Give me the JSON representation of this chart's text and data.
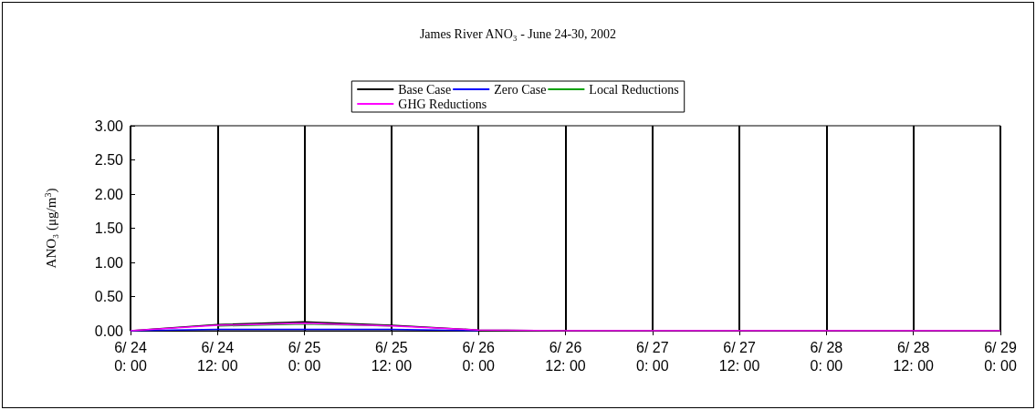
{
  "chart_data": {
    "type": "line",
    "title": "James River ANO₃ - June 24-30, 2002",
    "ylabel": "ANO₃ (μg/m$^{3}$)",
    "categories": [
      "6/ 24\n0: 00",
      "6/ 24\n12: 00",
      "6/ 25\n0: 00",
      "6/ 25\n12: 00",
      "6/ 26\n0: 00",
      "6/ 26\n12: 00",
      "6/ 27\n0: 00",
      "6/ 27\n12: 00",
      "6/ 28\n0: 00",
      "6/ 28\n12: 00",
      "6/ 29\n0: 00"
    ],
    "series": [
      {
        "name": "Base Case",
        "color": "#000000",
        "values": [
          0,
          0.09,
          0.13,
          0.08,
          0.01,
          0,
          null,
          null,
          null,
          null,
          null
        ]
      },
      {
        "name": "Zero Case",
        "color": "#0000ff",
        "values": [
          0,
          0.02,
          0.02,
          0.02,
          0,
          null,
          null,
          null,
          null,
          null,
          null
        ]
      },
      {
        "name": "Local Reductions",
        "color": "#00a000",
        "values": [
          null,
          0.07,
          0.1,
          0.07,
          null,
          null,
          null,
          null,
          null,
          null,
          null
        ]
      },
      {
        "name": "GHG Reductions",
        "color": "#ff00ff",
        "values": [
          0,
          0.08,
          0.11,
          0.07,
          0.01,
          0,
          0,
          0,
          0,
          0,
          0
        ]
      }
    ],
    "ylim": [
      0,
      3
    ],
    "yticks": [
      {
        "value": 0,
        "label": "0.00"
      },
      {
        "value": 0.5,
        "label": "0.50"
      },
      {
        "value": 1,
        "label": "1.00"
      },
      {
        "value": 1.5,
        "label": "1.50"
      },
      {
        "value": 2,
        "label": "2.00"
      },
      {
        "value": 2.5,
        "label": "2.50"
      },
      {
        "value": 3,
        "label": "3.00"
      }
    ],
    "grid": "x",
    "legend": "top",
    "marker": "none",
    "line_style": "solid"
  }
}
